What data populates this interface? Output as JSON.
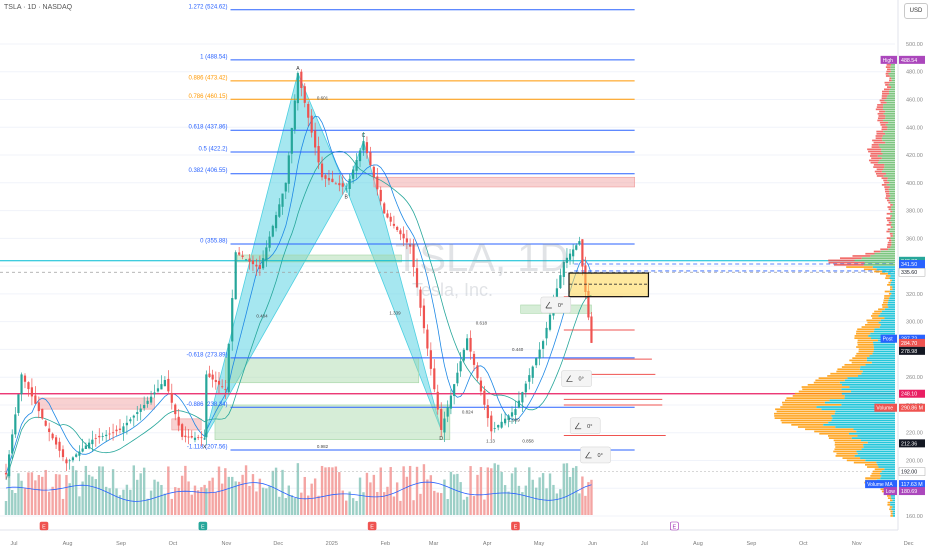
{
  "header": {
    "symbol_line": "TSLA · 1D · NASDAQ",
    "currency": "USD"
  },
  "watermark": {
    "ticker": "TSLA, 1D",
    "company": "Tesla, Inc."
  },
  "colors": {
    "up": "#26a69a",
    "down": "#ef5350",
    "fib_blue": "#2962ff",
    "fib_orange": "#ff9800",
    "pattern": "#4dd0e1",
    "magenta": "#e91e63",
    "teal_line": "#00bcd4",
    "volume_up": "#9ccfc6",
    "volume_down": "#f4a5a3",
    "profile_up": "#00bcd4",
    "profile_down": "#ff9800",
    "profile_green": "#66bb6a",
    "profile_red": "#ef5350"
  },
  "chart_data": {
    "type": "candlestick",
    "symbol": "TSLA",
    "interval": "1D",
    "exchange": "NASDAQ",
    "y_axis_ticks": [
      500,
      480,
      460,
      440,
      420,
      400,
      380,
      360,
      340,
      320,
      300,
      280,
      260,
      240,
      220,
      200,
      180,
      160
    ],
    "ylim": [
      155,
      530
    ],
    "x_axis_labels": [
      "Jul",
      "Aug",
      "Sep",
      "Oct",
      "Nov",
      "Dec",
      "2025",
      "Feb",
      "Mar",
      "Apr",
      "May",
      "Jun",
      "Jul",
      "Aug",
      "Sep",
      "Oct",
      "Nov",
      "Dec"
    ],
    "price_series": [
      {
        "date": "2024-07-01",
        "close": 190
      },
      {
        "date": "2024-07-10",
        "close": 262
      },
      {
        "date": "2024-07-24",
        "close": 225
      },
      {
        "date": "2024-08-05",
        "close": 198
      },
      {
        "date": "2024-08-20",
        "close": 215
      },
      {
        "date": "2024-09-05",
        "close": 222
      },
      {
        "date": "2024-09-19",
        "close": 240
      },
      {
        "date": "2024-10-01",
        "close": 258
      },
      {
        "date": "2024-10-11",
        "close": 217
      },
      {
        "date": "2024-10-24",
        "close": 216
      },
      {
        "date": "2024-10-25",
        "close": 262
      },
      {
        "date": "2024-11-05",
        "close": 251
      },
      {
        "date": "2024-11-11",
        "close": 350
      },
      {
        "date": "2024-11-25",
        "close": 338
      },
      {
        "date": "2024-12-10",
        "close": 400
      },
      {
        "date": "2024-12-17",
        "close": 479
      },
      {
        "date": "2024-12-31",
        "close": 404
      },
      {
        "date": "2025-01-14",
        "close": 396
      },
      {
        "date": "2025-01-24",
        "close": 430
      },
      {
        "date": "2025-02-05",
        "close": 378
      },
      {
        "date": "2025-02-20",
        "close": 354
      },
      {
        "date": "2025-03-10",
        "close": 222
      },
      {
        "date": "2025-03-25",
        "close": 288
      },
      {
        "date": "2025-04-08",
        "close": 221
      },
      {
        "date": "2025-04-22",
        "close": 237
      },
      {
        "date": "2025-05-08",
        "close": 286
      },
      {
        "date": "2025-05-20",
        "close": 343
      },
      {
        "date": "2025-05-29",
        "close": 358
      },
      {
        "date": "2025-06-05",
        "close": 284.7
      }
    ],
    "fib_levels": [
      {
        "label": "1.272 (524.62)",
        "ratio": 1.272,
        "price": 524.62,
        "color": "#2962ff"
      },
      {
        "label": "1 (488.54)",
        "ratio": 1,
        "price": 488.54,
        "color": "#2962ff"
      },
      {
        "label": "0.886 (473.42)",
        "ratio": 0.886,
        "price": 473.42,
        "color": "#ff9800"
      },
      {
        "label": "0.786 (460.15)",
        "ratio": 0.786,
        "price": 460.15,
        "color": "#ff9800"
      },
      {
        "label": "0.618 (437.86)",
        "ratio": 0.618,
        "price": 437.86,
        "color": "#2962ff"
      },
      {
        "label": "0.5 (422.2)",
        "ratio": 0.5,
        "price": 422.2,
        "color": "#2962ff"
      },
      {
        "label": "0.382 (406.55)",
        "ratio": 0.382,
        "price": 406.55,
        "color": "#2962ff"
      },
      {
        "label": "0 (355.88)",
        "ratio": 0,
        "price": 355.88,
        "color": "#2962ff"
      },
      {
        "label": "-0.618 (273.89)",
        "ratio": -0.618,
        "price": 273.89,
        "color": "#2962ff"
      },
      {
        "label": "-0.886 (238.34)",
        "ratio": -0.886,
        "price": 238.34,
        "color": "#2962ff"
      },
      {
        "label": "-1.118 (207.56)",
        "ratio": -1.118,
        "price": 207.56,
        "color": "#2962ff"
      }
    ],
    "pattern_labels": [
      "X",
      "A",
      "B",
      "C",
      "D"
    ],
    "ratio_labels": [
      "0.601",
      "0.404",
      "1.339",
      "0.982",
      "0.618",
      "0.440",
      "1.13",
      "0.858",
      "0.824",
      "1.909"
    ],
    "price_labels": [
      {
        "text": "High",
        "value": "488.54",
        "color": "#ab47bc"
      },
      {
        "text": "",
        "value": "343.82",
        "color": "#26a69a"
      },
      {
        "text": "",
        "value": "341.50",
        "color": "#2962ff"
      },
      {
        "text": "",
        "value": "336.51",
        "color": "#2962ff"
      },
      {
        "text": "",
        "value": "335.60",
        "color": "#ffffff"
      },
      {
        "text": "Post",
        "value": "287.72",
        "color": "#2962ff"
      },
      {
        "text": "",
        "value": "284.70",
        "color": "#ef5350"
      },
      {
        "text": "",
        "value": "278.98",
        "color": "#131722"
      },
      {
        "text": "",
        "value": "248.10",
        "color": "#e91e63"
      },
      {
        "text": "Volume",
        "value": "290.86 M",
        "color": "#ef5350"
      },
      {
        "text": "",
        "value": "212.36",
        "color": "#131722"
      },
      {
        "text": "",
        "value": "192.00",
        "color": "#ffffff"
      },
      {
        "text": "Volume MA",
        "value": "117.63 M",
        "color": "#2962ff"
      },
      {
        "text": "Low",
        "value": "180.69",
        "color": "#ab47bc"
      }
    ],
    "projected_angle_labels": [
      "0°",
      "0°",
      "0°",
      "0°"
    ],
    "earnings_markers": [
      "E",
      "E",
      "E",
      "E",
      "E",
      "E"
    ]
  }
}
